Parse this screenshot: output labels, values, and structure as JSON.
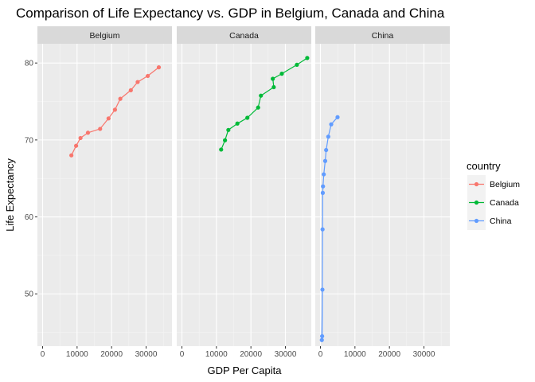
{
  "chart_data": {
    "type": "line",
    "title": "Comparison of Life Expectancy vs. GDP in Belgium, Canada and China",
    "xlabel": "GDP Per Capita",
    "ylabel": "Life Expectancy",
    "xlim": [
      -1500,
      37500
    ],
    "ylim": [
      43.2,
      82.5
    ],
    "xticks": [
      0,
      10000,
      20000,
      30000
    ],
    "yticks": [
      50,
      60,
      70,
      80
    ],
    "grid": true,
    "facet_by": "country",
    "legend": {
      "title": "country",
      "position": "right"
    },
    "series": [
      {
        "name": "Belgium",
        "color": "#F8766D",
        "x": [
          8343,
          9715,
          10991,
          13149,
          16672,
          19118,
          20980,
          22526,
          25576,
          27561,
          30486,
          33693
        ],
        "y": [
          68.0,
          69.24,
          70.25,
          70.94,
          71.44,
          72.8,
          73.93,
          75.35,
          76.46,
          77.53,
          78.32,
          79.44
        ]
      },
      {
        "name": "Canada",
        "color": "#00BA38",
        "x": [
          11367,
          12490,
          13462,
          16077,
          18971,
          22091,
          22899,
          26627,
          26343,
          28955,
          33329,
          36319
        ],
        "y": [
          68.75,
          69.96,
          71.3,
          72.13,
          72.88,
          74.21,
          75.76,
          76.86,
          77.95,
          78.61,
          79.77,
          80.65
        ]
      },
      {
        "name": "China",
        "color": "#619CFF",
        "x": [
          400,
          576,
          488,
          613,
          677,
          742,
          962,
          1379,
          1656,
          2277,
          3119,
          4959
        ],
        "y": [
          44.0,
          50.55,
          44.5,
          58.38,
          63.12,
          63.97,
          65.53,
          67.27,
          68.69,
          70.43,
          72.03,
          72.96
        ]
      }
    ]
  }
}
